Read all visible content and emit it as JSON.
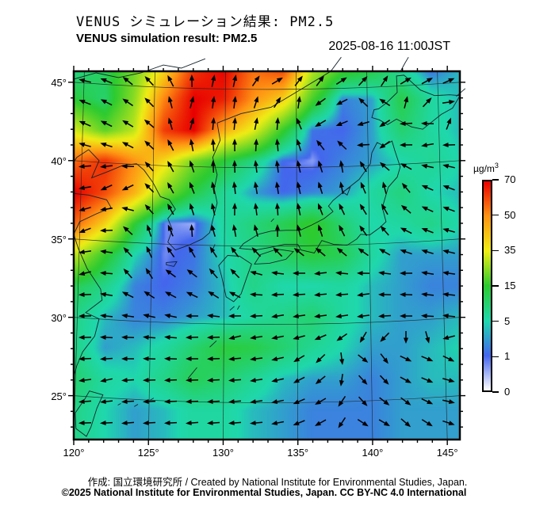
{
  "header": {
    "title_jp": "VENUS シミュレーション結果: PM2.5",
    "title_en": "VENUS simulation result: PM2.5",
    "datetime": "2025-08-16 11:00JST"
  },
  "footer": {
    "credit": "作成: 国立環境研究所 / Created by National Institute for Environmental Studies, Japan.",
    "license": "©2025 National Institute for Environmental Studies, Japan. CC BY-NC 4.0 International"
  },
  "colorbar": {
    "unit_base": "µg/m",
    "unit_sup": "3",
    "tick_labels_top_to_bottom": [
      "70",
      "50",
      "35",
      "15",
      "5",
      "1",
      "0"
    ],
    "anchor_values": [
      0,
      1,
      5,
      15,
      35,
      50,
      70
    ],
    "anchor_colors": [
      "#ffffff",
      "#4466ee",
      "#1fd8ad",
      "#2ccb30",
      "#f0ee15",
      "#ff9414",
      "#e80000"
    ]
  },
  "axes": {
    "lat_labels": [
      {
        "value": 45,
        "label": "45°"
      },
      {
        "value": 40,
        "label": "40°"
      },
      {
        "value": 35,
        "label": "35°"
      },
      {
        "value": 30,
        "label": "30°"
      },
      {
        "value": 25,
        "label": "25°"
      }
    ],
    "lon_labels": [
      {
        "value": 120,
        "label": "120°"
      },
      {
        "value": 125,
        "label": "125°"
      },
      {
        "value": 130,
        "label": "130°"
      },
      {
        "value": 135,
        "label": "135°"
      },
      {
        "value": 140,
        "label": "140°"
      },
      {
        "value": 145,
        "label": "145°"
      }
    ],
    "lon_range": [
      120,
      145.84
    ],
    "lat_range": [
      22.2,
      45.7
    ],
    "grid_step_deg": 5,
    "minor_tick_step_deg": 1
  },
  "chart_data": {
    "type": "heatmap",
    "title": "VENUS simulation result: PM2.5",
    "variable": "PM2.5 concentration",
    "unit": "µg/m³",
    "time": "2025-08-16 11:00JST",
    "legend_position": "right",
    "grid": true,
    "lons": [
      120,
      122,
      124,
      126,
      128,
      130,
      132,
      134,
      136,
      138,
      140,
      142,
      144,
      146
    ],
    "lats": [
      46,
      44,
      42,
      40,
      38,
      36,
      34,
      32,
      30,
      28,
      26,
      24
    ],
    "values": [
      [
        8,
        12,
        22,
        38,
        62,
        70,
        55,
        62,
        30,
        18,
        14,
        6,
        1,
        4
      ],
      [
        14,
        10,
        25,
        52,
        70,
        66,
        50,
        40,
        18,
        2,
        3,
        13,
        6,
        4
      ],
      [
        32,
        20,
        30,
        62,
        70,
        46,
        34,
        16,
        1.5,
        1,
        3,
        10,
        6,
        4
      ],
      [
        56,
        64,
        50,
        38,
        22,
        14,
        8,
        1,
        0.6,
        2,
        3,
        5,
        7,
        5
      ],
      [
        70,
        60,
        45,
        24,
        13,
        7,
        3,
        1,
        2,
        3,
        6,
        9,
        5,
        4
      ],
      [
        56,
        40,
        15,
        0.8,
        0.5,
        6,
        9,
        12,
        16,
        10,
        5,
        6,
        8,
        5
      ],
      [
        30,
        16,
        5,
        0.7,
        1.5,
        5,
        8,
        11,
        14,
        12,
        6,
        3,
        3,
        3
      ],
      [
        12,
        8,
        2,
        1,
        2,
        4,
        8,
        5,
        5,
        6,
        4,
        3,
        2,
        2
      ],
      [
        8,
        4,
        2,
        2,
        3,
        4,
        6,
        8,
        10,
        6,
        4,
        3,
        3,
        4
      ],
      [
        8,
        3,
        4,
        6,
        10,
        14,
        13,
        10,
        7,
        5,
        3,
        3,
        4,
        5
      ],
      [
        10,
        6,
        5,
        8,
        12,
        10,
        7,
        4,
        3,
        3,
        2,
        3,
        4,
        4
      ],
      [
        8,
        5,
        3,
        4,
        6,
        6,
        4,
        3,
        2,
        2,
        2,
        3,
        3,
        3
      ]
    ],
    "wind_vectors": [
      [
        121,
        45.5,
        170
      ],
      [
        125,
        46,
        135
      ],
      [
        129.5,
        46,
        70
      ],
      [
        133.5,
        45,
        25
      ],
      [
        138,
        45.5,
        30
      ],
      [
        143,
        45.5,
        25
      ],
      [
        146,
        43.5,
        0
      ],
      [
        120,
        42,
        155
      ],
      [
        124,
        42.5,
        150
      ],
      [
        128,
        43,
        60
      ],
      [
        132,
        42,
        75
      ],
      [
        137,
        43,
        230
      ],
      [
        140.5,
        41.5,
        230
      ],
      [
        144,
        41,
        195
      ],
      [
        120,
        39,
        195
      ],
      [
        123,
        38.5,
        230
      ],
      [
        126,
        39,
        115
      ],
      [
        130,
        39.5,
        85
      ],
      [
        134,
        39,
        95
      ],
      [
        138,
        39,
        90
      ],
      [
        141,
        38,
        95
      ],
      [
        144.5,
        38,
        160
      ],
      [
        121,
        36,
        210
      ],
      [
        125,
        35,
        95
      ],
      [
        128,
        35.5,
        85
      ],
      [
        131,
        36.5,
        80
      ],
      [
        134,
        36,
        75
      ],
      [
        137,
        35.5,
        100
      ],
      [
        140,
        35.5,
        120
      ],
      [
        143,
        35.5,
        160
      ],
      [
        146,
        35,
        170
      ],
      [
        121,
        33,
        200
      ],
      [
        124.5,
        33,
        110
      ],
      [
        127,
        32.5,
        150
      ],
      [
        130,
        32.5,
        120
      ],
      [
        133,
        32,
        190
      ],
      [
        136,
        32.5,
        200
      ],
      [
        139,
        32,
        195
      ],
      [
        142,
        32.5,
        185
      ],
      [
        145,
        32,
        175
      ],
      [
        120,
        29.5,
        185
      ],
      [
        124,
        29,
        180
      ],
      [
        128,
        29.5,
        190
      ],
      [
        131,
        29,
        200
      ],
      [
        134,
        29.5,
        195
      ],
      [
        136,
        27,
        230
      ],
      [
        139,
        27,
        330
      ],
      [
        143,
        27,
        340
      ],
      [
        146,
        25,
        350
      ],
      [
        122,
        26,
        195
      ],
      [
        126,
        25.5,
        185
      ],
      [
        130,
        25.5,
        185
      ],
      [
        133,
        25,
        190
      ],
      [
        136,
        24,
        210
      ],
      [
        140,
        23.5,
        335
      ],
      [
        124,
        23,
        185
      ],
      [
        128,
        23,
        185
      ],
      [
        132,
        23,
        185
      ]
    ],
    "coastlines": {
      "open": [
        [
          [
            120,
            45.2
          ],
          [
            121.5,
            45.6
          ],
          [
            123,
            45.3
          ],
          [
            124.5,
            45.6
          ],
          [
            126,
            46.1
          ],
          [
            127.2,
            45.9
          ],
          [
            128.8,
            46.5
          ]
        ],
        [
          [
            129.6,
            42.4
          ],
          [
            131.2,
            43.0
          ],
          [
            133.2,
            43.4
          ],
          [
            135.3,
            44.6
          ],
          [
            137.2,
            45.7
          ],
          [
            137.9,
            46.6
          ]
        ],
        [
          [
            129.6,
            42.4
          ],
          [
            129.8,
            41.3
          ],
          [
            129.3,
            40.2
          ],
          [
            129.6,
            39.1
          ],
          [
            129.4,
            38.2
          ],
          [
            129.6,
            37.3
          ],
          [
            129.3,
            36.2
          ],
          [
            129.1,
            35.4
          ],
          [
            128.6,
            35.0
          ],
          [
            127.7,
            34.6
          ],
          [
            126.8,
            34.3
          ],
          [
            126.3,
            34.8
          ],
          [
            126.6,
            35.6
          ],
          [
            126.3,
            36.3
          ],
          [
            126.8,
            36.9
          ],
          [
            126.4,
            37.5
          ],
          [
            125.8,
            37.7
          ],
          [
            125.3,
            38.6
          ],
          [
            124.7,
            39.4
          ],
          [
            124.2,
            39.8
          ],
          [
            123.3,
            39.7
          ],
          [
            122.3,
            39.3
          ],
          [
            121.2,
            38.9
          ],
          [
            121.7,
            40.0
          ],
          [
            121.0,
            40.7
          ],
          [
            120.2,
            40.2
          ],
          [
            120,
            39.9
          ]
        ],
        [
          [
            120,
            37.9
          ],
          [
            121.0,
            37.8
          ],
          [
            122.2,
            37.5
          ],
          [
            122.5,
            37.0
          ],
          [
            121.5,
            36.6
          ],
          [
            120.4,
            36.1
          ],
          [
            120,
            35.3
          ],
          [
            120.3,
            34.4
          ],
          [
            120.9,
            33.1
          ],
          [
            121.8,
            31.8
          ],
          [
            121.9,
            31.1
          ],
          [
            120.8,
            30.3
          ],
          [
            121.7,
            29.9
          ],
          [
            121.4,
            28.8
          ],
          [
            120.6,
            27.8
          ],
          [
            120.2,
            26.9
          ],
          [
            120,
            26.2
          ]
        ],
        [
          [
            141.9,
            45.75
          ],
          [
            142.15,
            46.2
          ],
          [
            142.4,
            46.6
          ]
        ],
        [
          [
            145.6,
            44.1
          ],
          [
            146.2,
            44.6
          ]
        ],
        [
          [
            129.2,
            34.1
          ],
          [
            129.45,
            34.65
          ]
        ],
        [
          [
            127.65,
            26.1
          ],
          [
            128.25,
            26.8
          ]
        ],
        [
          [
            129.1,
            28.1
          ],
          [
            129.55,
            28.5
          ]
        ],
        [
          [
            133.2,
            36.1
          ],
          [
            133.4,
            36.3
          ]
        ],
        [
          [
            130.45,
            30.45
          ],
          [
            130.75,
            30.7
          ]
        ],
        [
          [
            130.95,
            30.5
          ],
          [
            131.1,
            30.75
          ]
        ],
        [
          [
            125.1,
            24.7
          ],
          [
            125.35,
            24.85
          ]
        ],
        [
          [
            124.05,
            24.3
          ],
          [
            124.3,
            24.45
          ]
        ],
        [
          [
            122.95,
            24.4
          ],
          [
            123.15,
            24.5
          ]
        ]
      ],
      "closed": [
        [
          [
            130.3,
            33.95
          ],
          [
            129.7,
            33.3
          ],
          [
            129.9,
            32.6
          ],
          [
            130.2,
            31.3
          ],
          [
            130.7,
            31.0
          ],
          [
            131.2,
            31.5
          ],
          [
            131.6,
            32.6
          ],
          [
            131.9,
            33.4
          ],
          [
            131.1,
            33.9
          ]
        ],
        [
          [
            132.1,
            33.4
          ],
          [
            133.1,
            33.45
          ],
          [
            134.2,
            33.7
          ],
          [
            134.7,
            34.2
          ],
          [
            133.6,
            34.35
          ],
          [
            132.5,
            34.0
          ]
        ],
        [
          [
            131.1,
            34.4
          ],
          [
            132.2,
            34.3
          ],
          [
            133.1,
            34.45
          ],
          [
            134.1,
            34.65
          ],
          [
            135.0,
            34.65
          ],
          [
            135.2,
            34.3
          ],
          [
            136.1,
            34.1
          ],
          [
            136.6,
            34.9
          ],
          [
            137.4,
            34.65
          ],
          [
            138.3,
            34.6
          ],
          [
            138.95,
            35.0
          ],
          [
            139.2,
            35.3
          ],
          [
            139.8,
            35.25
          ],
          [
            140.45,
            35.7
          ],
          [
            140.9,
            36.1
          ],
          [
            140.65,
            37.0
          ],
          [
            141.05,
            38.3
          ],
          [
            141.65,
            38.95
          ],
          [
            141.85,
            39.6
          ],
          [
            141.5,
            40.6
          ],
          [
            141.3,
            41.25
          ],
          [
            140.75,
            40.95
          ],
          [
            140.3,
            41.15
          ],
          [
            139.95,
            40.5
          ],
          [
            139.85,
            39.8
          ],
          [
            139.1,
            38.8
          ],
          [
            138.3,
            38.2
          ],
          [
            137.35,
            37.45
          ],
          [
            137.05,
            37.1
          ],
          [
            137.35,
            36.75
          ],
          [
            136.75,
            36.3
          ],
          [
            135.95,
            35.9
          ],
          [
            135.15,
            35.55
          ],
          [
            134.2,
            35.55
          ],
          [
            133.2,
            35.5
          ],
          [
            132.35,
            35.3
          ],
          [
            131.35,
            34.7
          ]
        ],
        [
          [
            140.45,
            42.6
          ],
          [
            141.0,
            42.3
          ],
          [
            141.6,
            42.65
          ],
          [
            142.6,
            42.15
          ],
          [
            143.35,
            42.0
          ],
          [
            144.6,
            42.95
          ],
          [
            145.35,
            43.35
          ],
          [
            145.85,
            44.15
          ],
          [
            145.15,
            44.2
          ],
          [
            144.15,
            44.15
          ],
          [
            143.2,
            44.5
          ],
          [
            142.1,
            45.45
          ],
          [
            141.6,
            45.4
          ],
          [
            141.65,
            44.35
          ],
          [
            140.95,
            43.7
          ],
          [
            140.4,
            43.3
          ],
          [
            140.1,
            43.25
          ],
          [
            139.95,
            42.75
          ]
        ],
        [
          [
            121.05,
            25.3
          ],
          [
            121.95,
            25.05
          ],
          [
            121.55,
            24.2
          ],
          [
            121.15,
            23.0
          ],
          [
            120.85,
            22.4
          ],
          [
            120.15,
            22.9
          ],
          [
            120.1,
            23.9
          ],
          [
            120.75,
            24.8
          ]
        ],
        [
          [
            126.2,
            33.5
          ],
          [
            126.9,
            33.55
          ],
          [
            126.7,
            33.25
          ],
          [
            126.2,
            33.35
          ]
        ],
        [
          [
            138.0,
            38.0
          ],
          [
            138.5,
            38.3
          ],
          [
            138.3,
            37.8
          ]
        ]
      ]
    }
  }
}
